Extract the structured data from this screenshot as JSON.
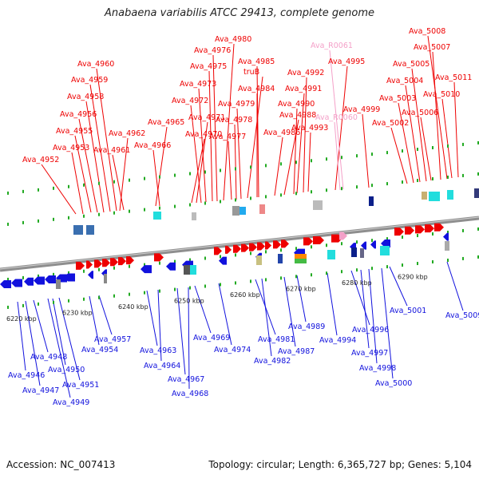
{
  "title": "Anabaena variabilis ATCC 29413, complete genome",
  "footer": {
    "accession": "Accession: NC_007413",
    "summary": "Topology: circular; Length: 6,365,727 bp; Genes: 5,104"
  },
  "colors": {
    "forward": "#ee0000",
    "reverse": "#1111dd",
    "rna_label": "#f4a0c8",
    "backbone": "#9a9a9a",
    "dots": "#22aa22",
    "tick_label": "#222222"
  },
  "scale_ticks": [
    "6220 kbp",
    "6230 kbp",
    "6240 kbp",
    "6250 kbp",
    "6260 kbp",
    "6270 kbp",
    "6280 kbp",
    "6290 kbp"
  ],
  "forward_labels": [
    "Ava_4952",
    "Ava_4953",
    "Ava_4955",
    "Ava_4956",
    "Ava_4958",
    "Ava_4959",
    "Ava_4960",
    "Ava_4962",
    "Ava_4961",
    "Ava_4965",
    "Ava_4966",
    "Ava_4970",
    "Ava_4971",
    "Ava_4972",
    "Ava_4973",
    "Ava_4975",
    "Ava_4976",
    "Ava_4980",
    "Ava_4977",
    "Ava_4978",
    "Ava_4979",
    "truB",
    "Ava_4984",
    "Ava_4985",
    "Ava_4986",
    "Ava_4988",
    "Ava_4990",
    "Ava_4991",
    "Ava_4992",
    "Ava_4993",
    "Ava_4995",
    "Ava_R0061",
    "Ava_R0060",
    "Ava_4999",
    "Ava_5002",
    "Ava_5003",
    "Ava_5004",
    "Ava_5005",
    "Ava_5006",
    "Ava_5007",
    "Ava_5008",
    "Ava_5010",
    "Ava_5011"
  ],
  "reverse_labels": [
    "Ava_4946",
    "Ava_4947",
    "Ava_4948",
    "Ava_4949",
    "Ava_4950",
    "Ava_4951",
    "Ava_4954",
    "Ava_4957",
    "Ava_4963",
    "Ava_4964",
    "Ava_4967",
    "Ava_4968",
    "Ava_4969",
    "Ava_4974",
    "Ava_4981",
    "Ava_4982",
    "Ava_4987",
    "Ava_4989",
    "Ava_4994",
    "Ava_4996",
    "Ava_4997",
    "Ava_4998",
    "Ava_5000",
    "Ava_5001",
    "Ava_5009"
  ]
}
